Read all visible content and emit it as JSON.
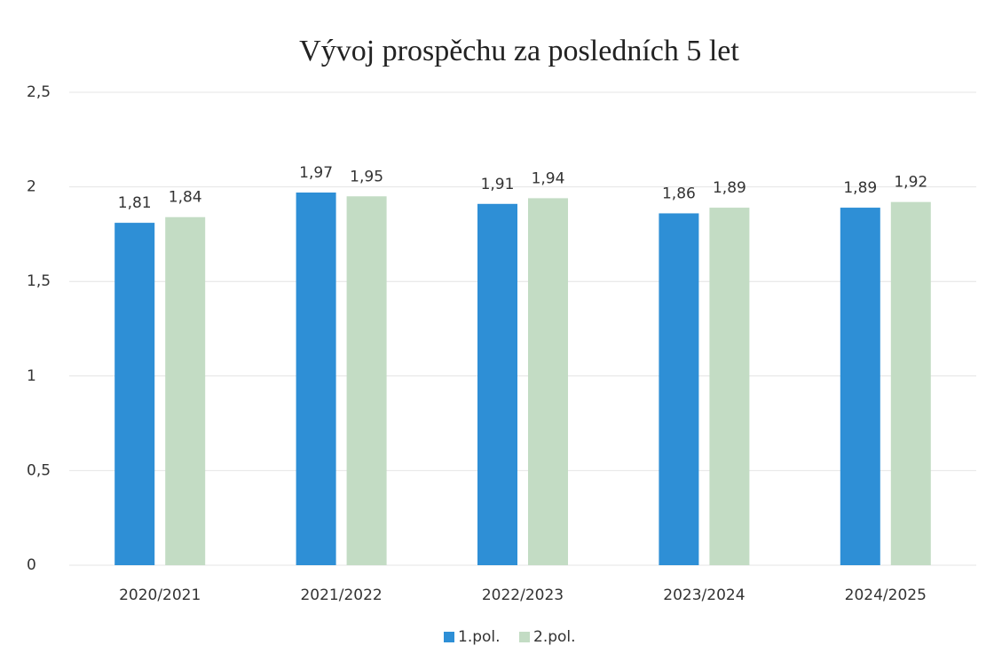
{
  "chart_data": {
    "type": "bar",
    "title": "Vývoj prospěchu za posledních 5 let",
    "categories": [
      "2020/2021",
      "2021/2022",
      "2022/2023",
      "2023/2024",
      "2024/2025"
    ],
    "series": [
      {
        "name": "1.pol.",
        "color": "#2e8fd6",
        "values": [
          1.81,
          1.97,
          1.91,
          1.86,
          1.89
        ],
        "value_labels": [
          "1,81",
          "1,97",
          "1,91",
          "1,86",
          "1,89"
        ]
      },
      {
        "name": "2.pol.",
        "color": "#c3dcc4",
        "values": [
          1.84,
          1.95,
          1.94,
          1.89,
          1.92
        ],
        "value_labels": [
          "1,84",
          "1,95",
          "1,94",
          "1,89",
          "1,92"
        ]
      }
    ],
    "ylim": [
      0,
      2.5
    ],
    "yticks": [
      0,
      {
        "value": 0.5,
        "label": "0,5"
      },
      1,
      {
        "value": 1.5,
        "label": "1,5"
      },
      2,
      {
        "value": 2.5,
        "label": "2,5"
      }
    ],
    "grid": true,
    "legend": "bottom"
  }
}
